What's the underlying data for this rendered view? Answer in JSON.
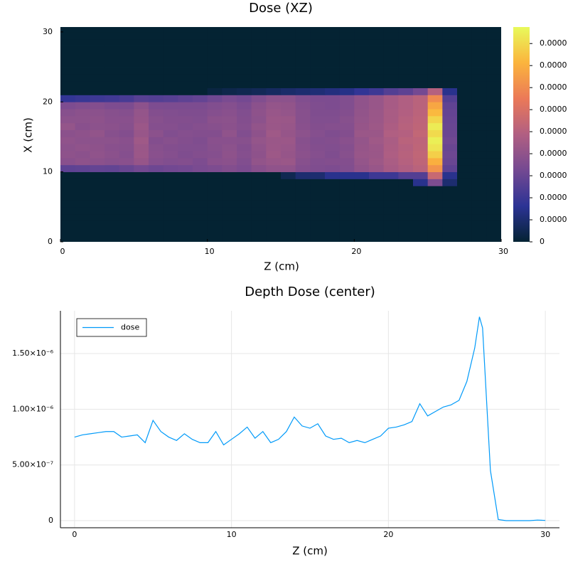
{
  "chart_data": [
    {
      "type": "heatmap",
      "title": "Dose (XZ)",
      "xlabel": "Z (cm)",
      "ylabel": "X (cm)",
      "xlim": [
        0,
        30
      ],
      "ylim": [
        0,
        30.7
      ],
      "xticks": [
        0,
        10,
        20,
        30
      ],
      "yticks": [
        0,
        10,
        20,
        30
      ],
      "clim": [
        0,
        1.95e-06
      ],
      "cticks": [
        0,
        {
          "value": 2e-07,
          "label": "0.0000"
        },
        {
          "value": 4e-07,
          "label": "0.0000"
        },
        {
          "value": 6e-07,
          "label": "0.0000"
        },
        {
          "value": 8e-07,
          "label": "0.0000"
        },
        {
          "value": 1e-06,
          "label": "0.0000"
        },
        {
          "value": 1.2e-06,
          "label": "0.0000"
        },
        {
          "value": 1.4e-06,
          "label": "0.0000"
        },
        {
          "value": 1.6e-06,
          "label": "0.0000"
        },
        {
          "value": 1.8e-06,
          "label": "0.0000"
        }
      ],
      "colormap": [
        "#042333",
        "#2c3395",
        "#744992",
        "#b15f82",
        "#eb7958",
        "#fbb43d",
        "#e8fa5b"
      ],
      "z_bins": [
        0,
        1,
        2,
        3,
        4,
        5,
        6,
        7,
        8,
        9,
        10,
        11,
        12,
        13,
        14,
        15,
        16,
        17,
        18,
        19,
        20,
        21,
        22,
        23,
        24,
        25,
        26,
        27,
        28,
        29,
        30
      ],
      "x_bins": [
        0,
        1,
        2,
        3,
        4,
        5,
        6,
        7,
        8,
        9,
        10,
        11,
        12,
        13,
        14,
        15,
        16,
        17,
        18,
        19,
        20,
        21,
        22,
        23,
        24,
        25,
        26,
        27,
        28,
        29,
        30,
        31
      ],
      "values": [
        [
          0,
          0,
          0,
          0,
          0,
          0,
          0,
          0,
          0,
          0,
          0,
          0,
          0,
          0,
          0,
          0,
          0,
          0,
          0,
          0,
          0,
          0,
          0,
          0,
          0,
          0,
          0,
          0,
          0,
          0
        ],
        [
          0,
          0,
          0,
          0,
          0,
          0,
          0,
          0,
          0,
          0,
          0,
          0,
          0,
          0,
          0,
          0,
          0,
          0,
          0,
          0,
          0,
          0,
          0,
          0,
          0,
          0,
          0,
          0,
          0,
          0
        ],
        [
          0,
          0,
          0,
          0,
          0,
          0,
          0,
          0,
          0,
          0,
          0,
          0,
          0,
          0,
          0,
          0,
          0,
          0,
          0,
          0,
          0,
          0,
          0,
          0,
          0,
          0,
          0,
          0,
          0,
          0
        ],
        [
          0,
          0,
          0,
          0,
          0,
          0,
          0,
          0,
          0,
          0,
          0,
          0,
          0,
          0,
          0,
          0,
          0,
          0,
          0,
          0,
          0,
          0,
          0,
          0,
          0,
          0,
          0,
          0,
          0,
          0
        ],
        [
          0,
          0,
          0,
          0,
          0,
          0,
          0,
          0,
          0,
          0,
          0,
          0,
          0,
          0,
          0,
          0,
          0,
          0,
          0,
          0,
          0,
          0,
          0,
          0,
          0,
          0,
          0,
          0,
          0,
          0
        ],
        [
          0,
          0,
          0,
          0,
          0,
          0,
          0,
          0,
          0,
          0,
          0,
          0,
          0,
          0,
          0,
          0,
          0,
          0,
          0,
          0,
          0,
          0,
          0,
          0,
          0,
          0,
          0,
          0,
          0,
          0
        ],
        [
          0,
          0,
          0,
          0,
          0,
          0,
          0,
          0,
          0,
          0,
          0,
          0,
          0,
          0,
          0,
          0,
          0,
          0,
          0,
          0,
          0,
          0,
          0,
          0,
          0,
          0,
          0,
          0,
          0,
          0
        ],
        [
          0,
          0,
          0,
          0,
          0,
          0,
          0,
          0,
          0,
          0,
          0,
          0,
          0,
          0,
          0,
          0,
          0,
          0,
          0,
          0,
          0,
          0,
          0,
          0,
          0,
          0,
          0,
          0,
          0,
          0
        ],
        [
          0,
          0,
          0,
          0,
          0,
          0,
          0,
          0,
          0,
          0,
          0,
          0,
          0,
          0,
          0,
          0,
          0,
          0,
          0,
          0,
          0,
          0,
          0,
          0,
          3e-07,
          7e-07,
          2e-07,
          0,
          0,
          0
        ],
        [
          0,
          0,
          0,
          0,
          0,
          0,
          0,
          0,
          0,
          0,
          0,
          0,
          0,
          0,
          0,
          1e-07,
          2e-07,
          2e-07,
          3e-07,
          3e-07,
          3e-07,
          4e-07,
          4e-07,
          5e-07,
          5e-07,
          1.1e-06,
          3e-07,
          0,
          0,
          0
        ],
        [
          5.5e-07,
          5.6e-07,
          5.8e-07,
          5.7e-07,
          6e-07,
          6.5e-07,
          6.2e-07,
          6.4e-07,
          6.5e-07,
          6.8e-07,
          7e-07,
          7.3e-07,
          7e-07,
          7.6e-07,
          8e-07,
          8e-07,
          7.3e-07,
          7.1e-07,
          7e-07,
          7.2e-07,
          8e-07,
          8.4e-07,
          9.2e-07,
          9.7e-07,
          1.02e-06,
          1.45e-06,
          5.5e-07,
          0,
          0,
          0
        ],
        [
          7.6e-07,
          7.9e-07,
          7.7e-07,
          7.5e-07,
          7.6e-07,
          8.3e-07,
          7.4e-07,
          7.2e-07,
          7.3e-07,
          7e-07,
          7.6e-07,
          7.7e-07,
          7.2e-07,
          8.1e-07,
          8.4e-07,
          8.5e-07,
          7.5e-07,
          7.2e-07,
          7.3e-07,
          7.3e-07,
          8.2e-07,
          8.7e-07,
          9.4e-07,
          1e-06,
          1.05e-06,
          1.6e-06,
          6e-07,
          0,
          0,
          0
        ],
        [
          7.9e-07,
          7.7e-07,
          8e-07,
          7.7e-07,
          7.4e-07,
          8.6e-07,
          7.6e-07,
          7.4e-07,
          7.1e-07,
          7.3e-07,
          7.4e-07,
          7.9e-07,
          7.4e-07,
          7.9e-07,
          8.7e-07,
          8.3e-07,
          7.7e-07,
          7.4e-07,
          7.1e-07,
          7.5e-07,
          8.4e-07,
          8.5e-07,
          9.6e-07,
          1.01e-06,
          1.06e-06,
          1.75e-06,
          6.2e-07,
          0,
          0,
          0
        ],
        [
          7.8e-07,
          8e-07,
          7.9e-07,
          7.6e-07,
          7.5e-07,
          8.5e-07,
          7.5e-07,
          7.3e-07,
          7.2e-07,
          7.2e-07,
          7.5e-07,
          7.8e-07,
          7.3e-07,
          8e-07,
          8.6e-07,
          8.4e-07,
          7.6e-07,
          7.3e-07,
          7.2e-07,
          7.4e-07,
          8.3e-07,
          8.6e-07,
          9.5e-07,
          1e-06,
          1.05e-06,
          1.85e-06,
          6e-07,
          0,
          0,
          0
        ],
        [
          8e-07,
          7.8e-07,
          7.8e-07,
          7.8e-07,
          7.6e-07,
          8.8e-07,
          7.3e-07,
          7.5e-07,
          7.3e-07,
          7.1e-07,
          7.6e-07,
          7.6e-07,
          7.5e-07,
          8.2e-07,
          8.5e-07,
          8.6e-07,
          7.5e-07,
          7.2e-07,
          7.3e-07,
          7.6e-07,
          8.2e-07,
          8.8e-07,
          9.4e-07,
          1.02e-06,
          1.04e-06,
          1.9e-06,
          6.3e-07,
          0,
          0,
          0
        ],
        [
          7.7e-07,
          7.9e-07,
          8.1e-07,
          7.5e-07,
          7.3e-07,
          8.4e-07,
          7.7e-07,
          7.2e-07,
          7.4e-07,
          7.3e-07,
          7.3e-07,
          8e-07,
          7.2e-07,
          7.9e-07,
          8.8e-07,
          8.3e-07,
          7.8e-07,
          7.4e-07,
          7.1e-07,
          7.3e-07,
          8.5e-07,
          8.5e-07,
          9.7e-07,
          9.9e-07,
          1.07e-06,
          1.8e-06,
          6.1e-07,
          0,
          0,
          0
        ],
        [
          8.2e-07,
          7.6e-07,
          7.8e-07,
          7.7e-07,
          7.5e-07,
          8.6e-07,
          7.4e-07,
          7.4e-07,
          7.2e-07,
          7.4e-07,
          7.5e-07,
          7.7e-07,
          7.4e-07,
          8.1e-07,
          8.5e-07,
          8.4e-07,
          7.6e-07,
          7.3e-07,
          7.4e-07,
          7.4e-07,
          8.3e-07,
          8.7e-07,
          9.5e-07,
          1.01e-06,
          1.05e-06,
          1.88e-06,
          6e-07,
          0,
          0,
          0
        ],
        [
          7.8e-07,
          7.8e-07,
          7.9e-07,
          7.6e-07,
          7.6e-07,
          8.3e-07,
          7.5e-07,
          7.3e-07,
          7.3e-07,
          7.2e-07,
          7.7e-07,
          7.8e-07,
          7.3e-07,
          7.8e-07,
          8.6e-07,
          8.5e-07,
          7.5e-07,
          7.2e-07,
          7.2e-07,
          7.5e-07,
          8.2e-07,
          8.6e-07,
          9.3e-07,
          1e-06,
          1.04e-06,
          1.78e-06,
          5.9e-07,
          0,
          0,
          0
        ],
        [
          7.5e-07,
          7.7e-07,
          7.7e-07,
          7.5e-07,
          7.4e-07,
          8.2e-07,
          7.3e-07,
          7.2e-07,
          7.1e-07,
          7.1e-07,
          7.4e-07,
          7.6e-07,
          7.2e-07,
          7.9e-07,
          8.4e-07,
          8.2e-07,
          7.5e-07,
          7.1e-07,
          7.1e-07,
          7.3e-07,
          8.1e-07,
          8.5e-07,
          9.3e-07,
          9.8e-07,
          1.03e-06,
          1.65e-06,
          5.8e-07,
          0,
          0,
          0
        ],
        [
          7e-07,
          7.2e-07,
          7.3e-07,
          7e-07,
          6.9e-07,
          7.8e-07,
          7e-07,
          6.9e-07,
          6.9e-07,
          6.9e-07,
          7.2e-07,
          7.4e-07,
          7e-07,
          7.7e-07,
          8.2e-07,
          8.1e-07,
          7.4e-07,
          7.1e-07,
          7e-07,
          7.2e-07,
          8e-07,
          8.4e-07,
          9.2e-07,
          9.7e-07,
          1.02e-06,
          1.55e-06,
          5.6e-07,
          0,
          0,
          0
        ],
        [
          3.5e-07,
          3.8e-07,
          4e-07,
          4.2e-07,
          4.5e-07,
          5.2e-07,
          5e-07,
          5.2e-07,
          5.5e-07,
          5.8e-07,
          6.3e-07,
          6.8e-07,
          6.5e-07,
          7.2e-07,
          7.8e-07,
          7.8e-07,
          7.2e-07,
          7e-07,
          7e-07,
          7.2e-07,
          8e-07,
          8.4e-07,
          9.2e-07,
          9.7e-07,
          1.02e-06,
          1.4e-06,
          5e-07,
          0,
          0,
          0
        ],
        [
          0,
          0,
          0,
          0,
          0,
          0,
          0,
          0,
          0,
          0,
          5e-08,
          8e-08,
          1e-07,
          1.2e-07,
          1.5e-07,
          1.8e-07,
          2e-07,
          2.2e-07,
          2.5e-07,
          2.8e-07,
          3.5e-07,
          4e-07,
          5e-07,
          5.5e-07,
          6.5e-07,
          1e-06,
          3e-07,
          0,
          0,
          0
        ],
        [
          0,
          0,
          0,
          0,
          0,
          0,
          0,
          0,
          0,
          0,
          0,
          0,
          0,
          0,
          0,
          0,
          0,
          0,
          0,
          0,
          0,
          0,
          0,
          0,
          0,
          0,
          0,
          0,
          0,
          0
        ],
        [
          0,
          0,
          0,
          0,
          0,
          0,
          0,
          0,
          0,
          0,
          0,
          0,
          0,
          0,
          0,
          0,
          0,
          0,
          0,
          0,
          0,
          0,
          0,
          0,
          0,
          0,
          0,
          0,
          0,
          0
        ],
        [
          0,
          0,
          0,
          0,
          0,
          0,
          0,
          0,
          0,
          0,
          0,
          0,
          0,
          0,
          0,
          0,
          0,
          0,
          0,
          0,
          0,
          0,
          0,
          0,
          0,
          0,
          0,
          0,
          0,
          0
        ],
        [
          0,
          0,
          0,
          0,
          0,
          0,
          0,
          0,
          0,
          0,
          0,
          0,
          0,
          0,
          0,
          0,
          0,
          0,
          0,
          0,
          0,
          0,
          0,
          0,
          0,
          0,
          0,
          0,
          0,
          0
        ],
        [
          0,
          0,
          0,
          0,
          0,
          0,
          0,
          0,
          0,
          0,
          0,
          0,
          0,
          0,
          0,
          0,
          0,
          0,
          0,
          0,
          0,
          0,
          0,
          0,
          0,
          0,
          0,
          0,
          0,
          0
        ],
        [
          0,
          0,
          0,
          0,
          0,
          0,
          0,
          0,
          0,
          0,
          0,
          0,
          0,
          0,
          0,
          0,
          0,
          0,
          0,
          0,
          0,
          0,
          0,
          0,
          0,
          0,
          0,
          0,
          0,
          0
        ],
        [
          0,
          0,
          0,
          0,
          0,
          0,
          0,
          0,
          0,
          0,
          0,
          0,
          0,
          0,
          0,
          0,
          0,
          0,
          0,
          0,
          0,
          0,
          0,
          0,
          0,
          0,
          0,
          0,
          0,
          0
        ],
        [
          0,
          0,
          0,
          0,
          0,
          0,
          0,
          0,
          0,
          0,
          0,
          0,
          0,
          0,
          0,
          0,
          0,
          0,
          0,
          0,
          0,
          0,
          0,
          0,
          0,
          0,
          0,
          0,
          0,
          0
        ],
        [
          0,
          0,
          0,
          0,
          0,
          0,
          0,
          0,
          0,
          0,
          0,
          0,
          0,
          0,
          0,
          0,
          0,
          0,
          0,
          0,
          0,
          0,
          0,
          0,
          0,
          0,
          0,
          0,
          0,
          0
        ]
      ]
    },
    {
      "type": "line",
      "title": "Depth Dose (center)",
      "xlabel": "Z (cm)",
      "xlim": [
        -0.9,
        30.9
      ],
      "ylim": [
        -6.4e-08,
        1.884e-06
      ],
      "xticks": [
        0,
        10,
        20,
        30
      ],
      "yticks": [
        0,
        {
          "value": 5e-07,
          "label": "5.00×10⁻⁷"
        },
        {
          "value": 1e-06,
          "label": "1.00×10⁻⁶"
        },
        {
          "value": 1.5e-06,
          "label": "1.50×10⁻⁶"
        }
      ],
      "grid": true,
      "legend": "top-left",
      "x": [
        0,
        0.5,
        1,
        1.5,
        2,
        2.5,
        3,
        3.5,
        4,
        4.5,
        5,
        5.5,
        6,
        6.5,
        7,
        7.5,
        8,
        8.5,
        9,
        9.5,
        10,
        10.5,
        11,
        11.5,
        12,
        12.5,
        13,
        13.5,
        14,
        14.5,
        15,
        15.5,
        16,
        16.5,
        17,
        17.5,
        18,
        18.5,
        19,
        19.5,
        20,
        20.5,
        21,
        21.5,
        22,
        22.5,
        23,
        23.5,
        24,
        24.5,
        25,
        25.5,
        25.8,
        26,
        26.5,
        27,
        27.5,
        28,
        28.5,
        29,
        29.5,
        30
      ],
      "series": [
        {
          "name": "dose",
          "color": "#009af9",
          "values": [
            7.5e-07,
            7.7e-07,
            7.8e-07,
            7.9e-07,
            8e-07,
            8e-07,
            7.5e-07,
            7.6e-07,
            7.7e-07,
            7e-07,
            9e-07,
            8e-07,
            7.5e-07,
            7.2e-07,
            7.8e-07,
            7.3e-07,
            7e-07,
            7e-07,
            8e-07,
            6.8e-07,
            7.3e-07,
            7.8e-07,
            8.4e-07,
            7.4e-07,
            8e-07,
            7e-07,
            7.3e-07,
            8e-07,
            9.3e-07,
            8.5e-07,
            8.3e-07,
            8.7e-07,
            7.6e-07,
            7.3e-07,
            7.4e-07,
            7e-07,
            7.2e-07,
            7e-07,
            7.3e-07,
            7.6e-07,
            8.3e-07,
            8.4e-07,
            8.6e-07,
            8.9e-07,
            1.05e-06,
            9.4e-07,
            9.8e-07,
            1.02e-06,
            1.04e-06,
            1.08e-06,
            1.25e-06,
            1.55e-06,
            1.83e-06,
            1.73e-06,
            4.5e-07,
            1e-08,
            0,
            0,
            0,
            0,
            5e-09,
            2e-09
          ]
        }
      ]
    }
  ]
}
